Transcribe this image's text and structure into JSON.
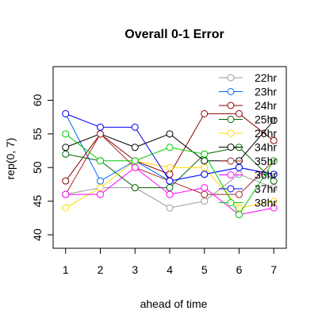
{
  "chart_data": {
    "type": "line",
    "title": "Overall 0-1 Error",
    "xlabel": "ahead of time",
    "ylabel": "rep(0, 7)",
    "x": [
      1,
      2,
      3,
      4,
      5,
      6,
      7
    ],
    "xlim": [
      0.64,
      7.36
    ],
    "ylim": [
      38,
      65
    ],
    "yticks": [
      40,
      45,
      50,
      55,
      60
    ],
    "legend_position": "top-right",
    "legend_frame": false,
    "grid": false,
    "marker": "open-circle",
    "series": [
      {
        "name": "22hr",
        "color": "#999999",
        "values": [
          46,
          47,
          47,
          44,
          45,
          49,
          47
        ]
      },
      {
        "name": "23hr",
        "color": "#0066ff",
        "values": [
          58,
          48,
          51,
          48,
          49,
          50,
          49
        ]
      },
      {
        "name": "24hr",
        "color": "#8b0000",
        "values": [
          48,
          55,
          51,
          49,
          58,
          58,
          54
        ]
      },
      {
        "name": "25hr",
        "color": "#006400",
        "values": [
          52,
          51,
          47,
          47,
          52,
          53,
          48
        ]
      },
      {
        "name": "26hr",
        "color": "#ffd700",
        "values": [
          44,
          47,
          51,
          50,
          50,
          44,
          45
        ]
      },
      {
        "name": "34hr",
        "color": "#000000",
        "values": [
          53,
          55,
          53,
          55,
          51,
          51,
          57
        ]
      },
      {
        "name": "35hr",
        "color": "#a52a2a",
        "values": [
          46,
          55,
          50,
          48,
          46,
          46,
          51
        ]
      },
      {
        "name": "36hr",
        "color": "#ff00ff",
        "values": [
          46,
          46,
          50,
          46,
          47,
          43,
          44
        ]
      },
      {
        "name": "37hr",
        "color": "#0000ff",
        "values": [
          58,
          56,
          56,
          48,
          49,
          50,
          49
        ]
      },
      {
        "name": "38hr",
        "color": "#00cc00",
        "values": [
          55,
          51,
          51,
          53,
          52,
          43,
          51
        ]
      }
    ]
  }
}
